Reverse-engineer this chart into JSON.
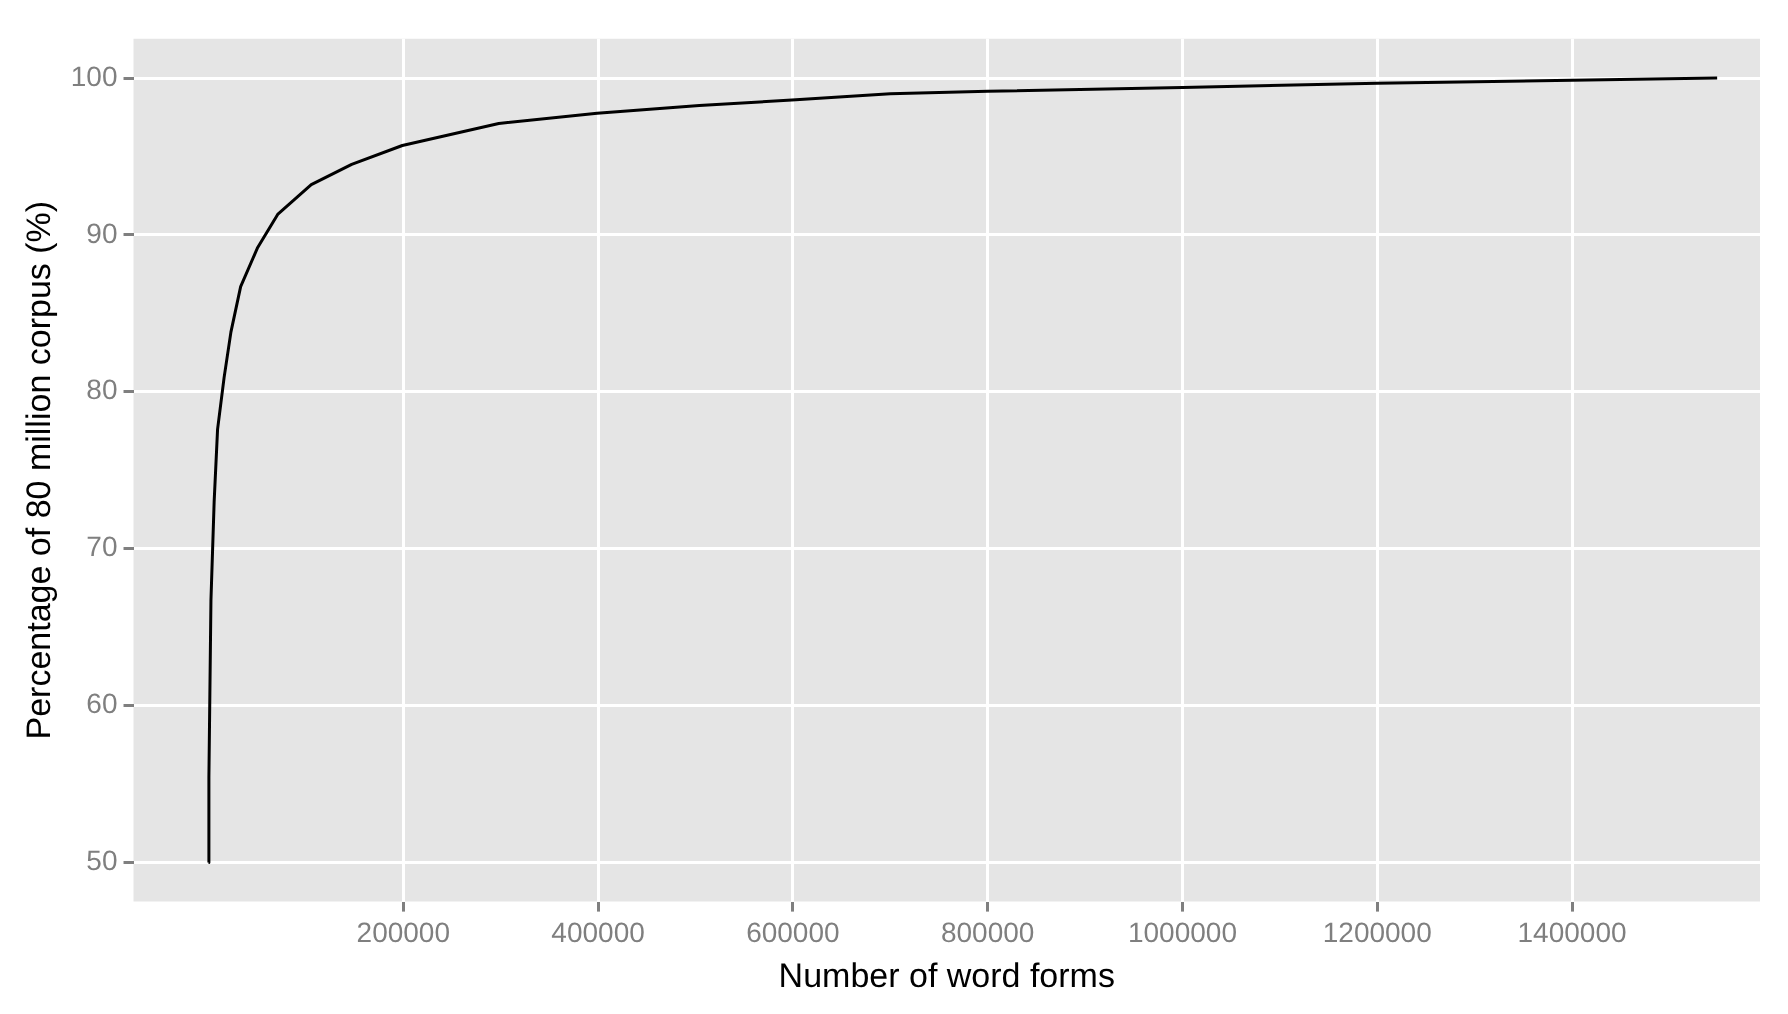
{
  "chart_data": {
    "type": "line",
    "xlabel": "Number of word forms",
    "ylabel": "Percentage of 80 million corpus (%)",
    "x": [
      0,
      400,
      2500,
      5800,
      9300,
      16000,
      23000,
      33000,
      50500,
      71000,
      105500,
      147000,
      199000,
      298000,
      399000,
      504000,
      599000,
      700000,
      800000,
      1000000,
      1200000,
      1400000,
      1549000
    ],
    "series": [
      {
        "color": "#000000",
        "values": [
          50,
          55.4,
          66.7,
          73,
          77.6,
          80.9,
          83.8,
          86.7,
          89.2,
          91.3,
          93.2,
          94.5,
          95.7,
          97.1,
          97.75,
          98.25,
          98.6,
          99.0,
          99.15,
          99.4,
          99.66,
          99.86,
          100
        ]
      }
    ],
    "xlim": [
      -77000,
      1593000
    ],
    "ylim": [
      47.5,
      102.5
    ],
    "xticks": [
      200000,
      400000,
      600000,
      800000,
      1000000,
      1200000,
      1400000
    ],
    "yticks": [
      50,
      60,
      70,
      80,
      90,
      100
    ],
    "grid": true,
    "legend": false,
    "marker": "none",
    "line_style": "solid"
  }
}
